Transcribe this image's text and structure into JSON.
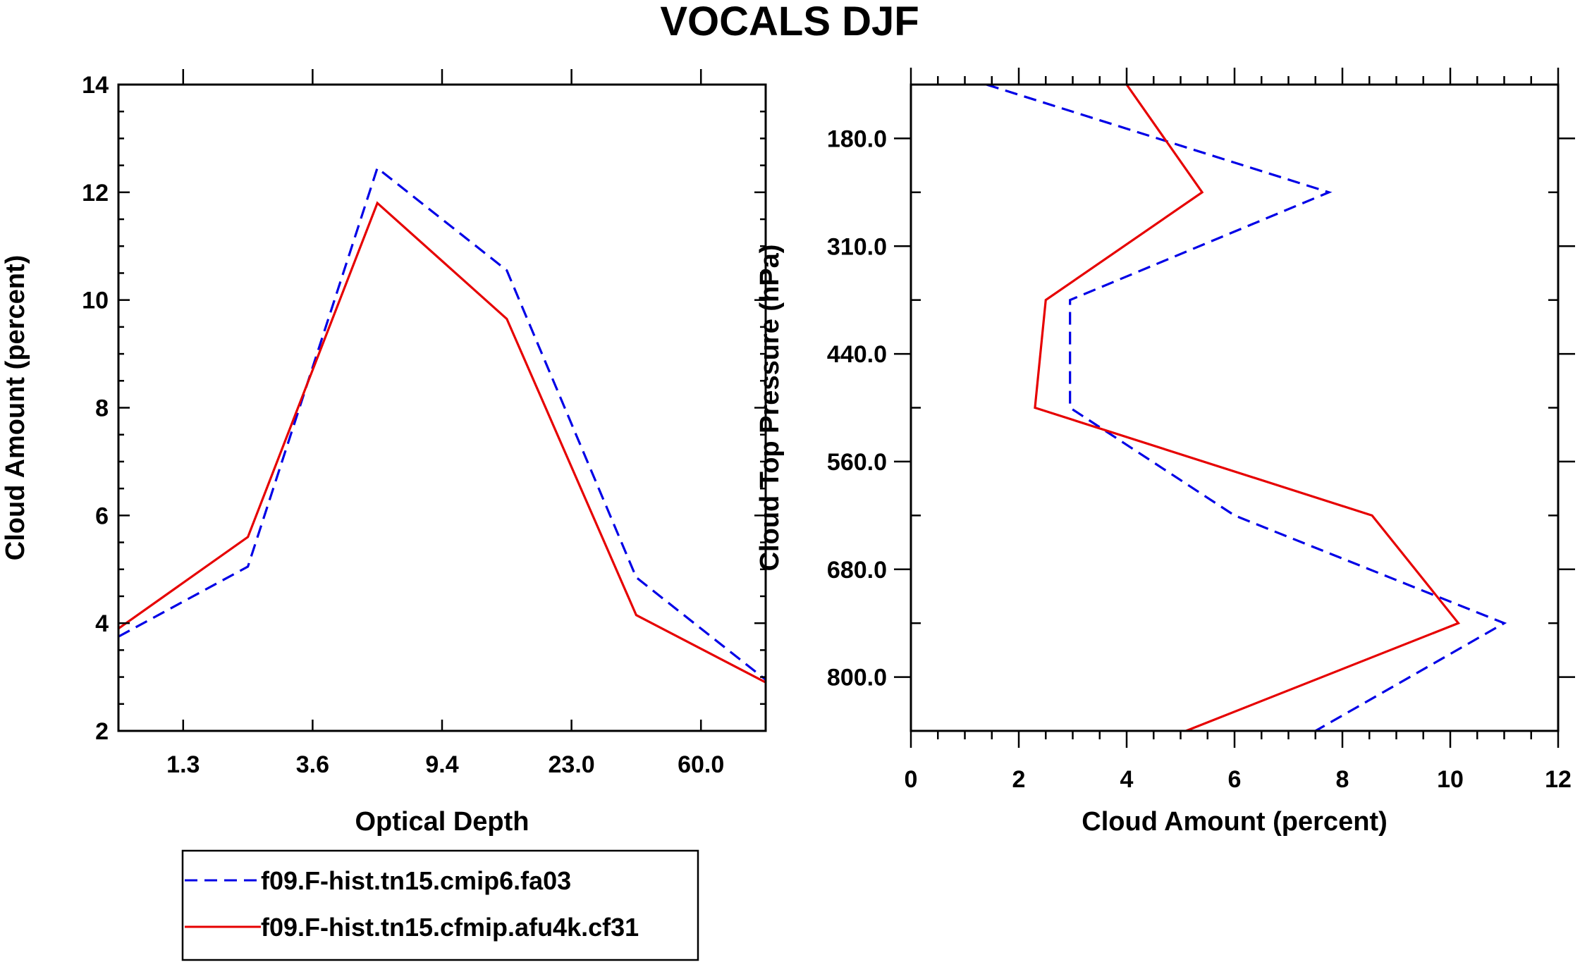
{
  "figure_title": "VOCALS DJF",
  "colors": {
    "series_a": "#0000e6",
    "series_b": "#e60000",
    "axes": "#000000"
  },
  "legend": {
    "entries": [
      {
        "label": "f09.F-hist.tn15.cmip6.fa03",
        "style": "dashed",
        "color": "#0000e6"
      },
      {
        "label": "f09.F-hist.tn15.cfmip.afu4k.cf31",
        "style": "solid",
        "color": "#e60000"
      }
    ]
  },
  "chart_data": [
    {
      "type": "line",
      "title": "",
      "xlabel": "Optical Depth",
      "ylabel": "Cloud Amount (percent)",
      "x_index": [
        0,
        1,
        2,
        3,
        4,
        5,
        6
      ],
      "x_tick_labels": [
        "1.3",
        "3.6",
        "9.4",
        "23.0",
        "60.0"
      ],
      "x_tick_label_index": [
        0.5,
        1.5,
        2.5,
        3.5,
        4.5
      ],
      "xlim": [
        0,
        5
      ],
      "ylim": [
        2,
        14
      ],
      "y_ticks": [
        2,
        4,
        6,
        8,
        10,
        12,
        14
      ],
      "y_tick_labels": [
        "2",
        "4",
        "6",
        "8",
        "10",
        "12",
        "14"
      ],
      "series": [
        {
          "name": "f09.F-hist.tn15.cmip6.fa03",
          "x": [
            0,
            1,
            2,
            3,
            4,
            5
          ],
          "values": [
            3.75,
            5.05,
            12.45,
            10.55,
            4.85,
            2.95
          ]
        },
        {
          "name": "f09.F-hist.tn15.cfmip.afu4k.cf31",
          "x": [
            0,
            1,
            2,
            3,
            4,
            5
          ],
          "values": [
            3.9,
            5.6,
            11.8,
            9.65,
            4.15,
            2.9
          ]
        }
      ]
    },
    {
      "type": "line",
      "title": "",
      "xlabel": "Cloud Amount (percent)",
      "ylabel": "Cloud Top Pressure (hPa)",
      "xlim": [
        0,
        12
      ],
      "x_ticks": [
        0,
        2,
        4,
        6,
        8,
        10,
        12
      ],
      "x_tick_labels": [
        "0",
        "2",
        "4",
        "6",
        "8",
        "10",
        "12"
      ],
      "y_index_range": [
        0,
        6
      ],
      "y_tick_labels": [
        "180.0",
        "310.0",
        "440.0",
        "560.0",
        "680.0",
        "800.0"
      ],
      "y_tick_label_index": [
        0.5,
        1.5,
        2.5,
        3.5,
        4.5,
        5.5
      ],
      "series": [
        {
          "name": "f09.F-hist.tn15.cmip6.fa03",
          "y": [
            0,
            1,
            2,
            3,
            4,
            5,
            6
          ],
          "values": [
            1.4,
            7.75,
            2.95,
            2.95,
            6.0,
            11.0,
            7.5
          ]
        },
        {
          "name": "f09.F-hist.tn15.cfmip.afu4k.cf31",
          "y": [
            0,
            1,
            2,
            3,
            4,
            5,
            6
          ],
          "values": [
            4.0,
            5.4,
            2.5,
            2.3,
            8.55,
            10.15,
            5.1
          ]
        }
      ]
    }
  ]
}
